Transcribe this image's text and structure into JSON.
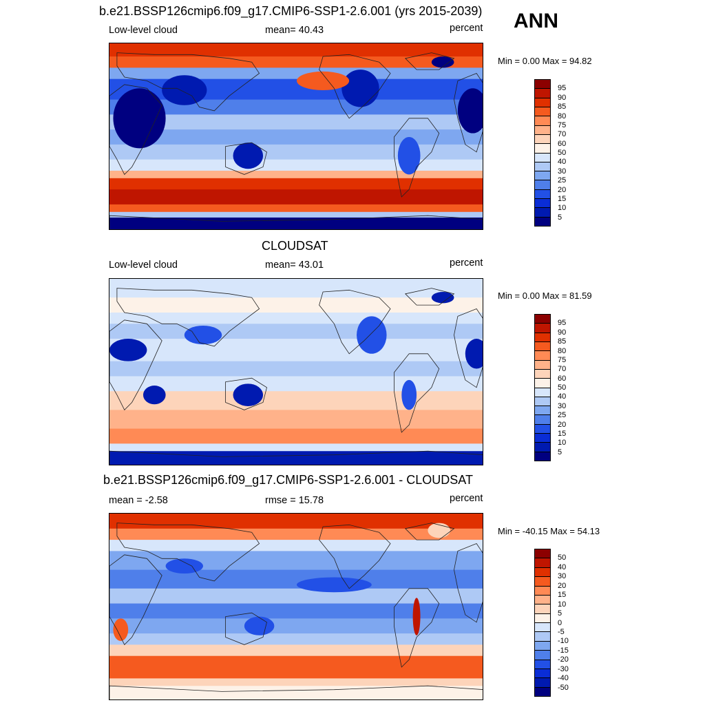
{
  "season": "ANN",
  "chart_data": [
    {
      "type": "heatmap",
      "title": "b.e21.BSSP126cmip6.f09_g17.CMIP6-SSP1-2.6.001 (yrs 2015-2039)",
      "left_label": "Low-level cloud",
      "center_label": "mean=  40.43",
      "right_label": "percent",
      "minmax": "Min =    0.00 Max =  94.82",
      "mean": 40.43,
      "min": 0.0,
      "max": 94.82,
      "colorbar": {
        "labels": [
          "95",
          "90",
          "85",
          "80",
          "75",
          "70",
          "60",
          "50",
          "40",
          "30",
          "25",
          "20",
          "15",
          "10",
          "5"
        ],
        "colors": [
          "#8c0000",
          "#bf1500",
          "#e03000",
          "#f55a1f",
          "#ff8a55",
          "#ffb28a",
          "#fdd4ba",
          "#fdf2e8",
          "#d7e6fb",
          "#aec9f5",
          "#7ea7f0",
          "#4f7fea",
          "#2250e6",
          "#0a2dd6",
          "#001ab0",
          "#000080"
        ]
      },
      "map_style": "model"
    },
    {
      "type": "heatmap",
      "title": "CLOUDSAT",
      "left_label": "Low-level cloud",
      "center_label": "mean=  43.01",
      "right_label": "percent",
      "minmax": "Min =    0.00 Max =  81.59",
      "mean": 43.01,
      "min": 0.0,
      "max": 81.59,
      "colorbar": {
        "labels": [
          "95",
          "90",
          "85",
          "80",
          "75",
          "70",
          "60",
          "50",
          "40",
          "30",
          "25",
          "20",
          "15",
          "10",
          "5"
        ],
        "colors": [
          "#8c0000",
          "#bf1500",
          "#e03000",
          "#f55a1f",
          "#ff8a55",
          "#ffb28a",
          "#fdd4ba",
          "#fdf2e8",
          "#d7e6fb",
          "#aec9f5",
          "#7ea7f0",
          "#4f7fea",
          "#2250e6",
          "#0a2dd6",
          "#001ab0",
          "#000080"
        ]
      },
      "map_style": "obs"
    },
    {
      "type": "heatmap",
      "title": "b.e21.BSSP126cmip6.f09_g17.CMIP6-SSP1-2.6.001 - CLOUDSAT",
      "left_label": "mean =  -2.58",
      "center_label": "rmse =  15.78",
      "right_label": "percent",
      "minmax": "Min = -40.15 Max =  54.13",
      "mean": -2.58,
      "rmse": 15.78,
      "min": -40.15,
      "max": 54.13,
      "colorbar": {
        "labels": [
          "50",
          "40",
          "30",
          "20",
          "15",
          "10",
          "5",
          "0",
          "-5",
          "-10",
          "-15",
          "-20",
          "-30",
          "-40",
          "-50"
        ],
        "colors": [
          "#8c0000",
          "#bf1500",
          "#e03000",
          "#f55a1f",
          "#ff8a55",
          "#ffb28a",
          "#fdd4ba",
          "#fdf2e8",
          "#d7e6fb",
          "#aec9f5",
          "#7ea7f0",
          "#4f7fea",
          "#2250e6",
          "#0a2dd6",
          "#001ab0",
          "#000080"
        ]
      },
      "map_style": "diff"
    }
  ]
}
